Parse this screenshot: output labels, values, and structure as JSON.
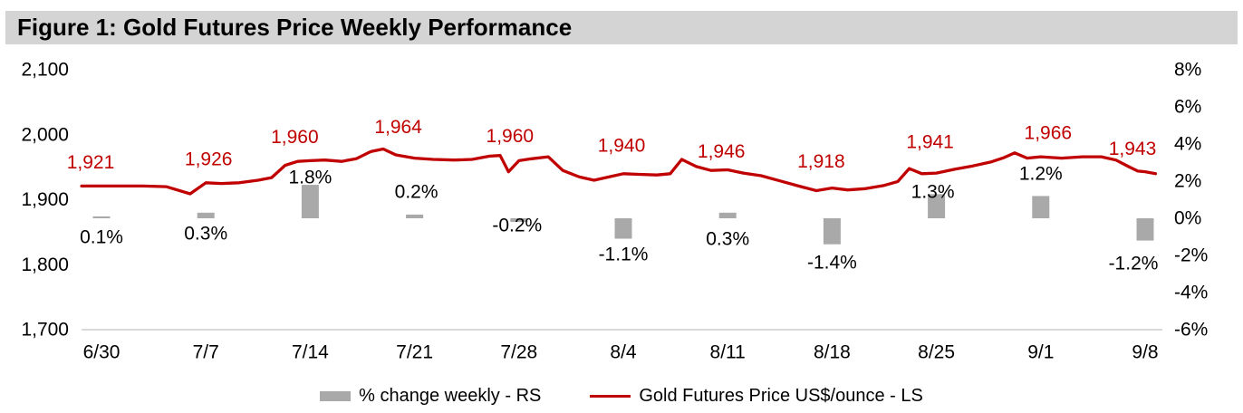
{
  "title": "Figure 1: Gold Futures Price Weekly Performance",
  "colors": {
    "line": "#c00000",
    "bar": "#a9a9a9",
    "title_bg": "#d4d4d4",
    "axis_line": "#d9d9d9",
    "text": "#000000"
  },
  "legend": [
    {
      "label": "% change weekly - RS",
      "swatch": "bar"
    },
    {
      "label": "Gold Futures Price US$/ounce - LS",
      "swatch": "line"
    }
  ],
  "chart_data": {
    "type": "combo",
    "title": "Figure 1: Gold Futures Price Weekly Performance",
    "categories": [
      "6/30",
      "7/7",
      "7/14",
      "7/21",
      "7/28",
      "8/4",
      "8/11",
      "8/18",
      "8/25",
      "9/1",
      "9/8"
    ],
    "left_axis": {
      "label": "Gold Futures Price US$/ounce - LS",
      "ticks": [
        "2,100",
        "2,000",
        "1,900",
        "1,800",
        "1,700"
      ],
      "range": [
        1700,
        2100
      ]
    },
    "right_axis": {
      "label": "% change weekly - RS",
      "ticks": [
        "8%",
        "6%",
        "4%",
        "2%",
        "0%",
        "-2%",
        "-4%",
        "-6%"
      ],
      "range": [
        -6,
        8
      ]
    },
    "grid": "baseline-only",
    "legend_position": "bottom-center",
    "series": [
      {
        "name": "% change weekly - RS",
        "type": "bar",
        "axis": "right",
        "values": [
          0.1,
          0.3,
          1.8,
          0.2,
          -0.2,
          -1.1,
          0.3,
          -1.4,
          1.3,
          1.2,
          -1.2
        ],
        "labels": [
          "0.1%",
          "0.3%",
          "1.8%",
          "0.2%",
          "-0.2%",
          "-1.1%",
          "0.3%",
          "-1.4%",
          "1.3%",
          "1.2%",
          "-1.2%"
        ]
      },
      {
        "name": "Gold Futures Price US$/ounce - LS",
        "type": "line",
        "axis": "left",
        "weekly_close": [
          1921,
          1926,
          1960,
          1964,
          1960,
          1940,
          1946,
          1918,
          1941,
          1966,
          1943
        ],
        "labels": [
          "1,921",
          "1,926",
          "1,960",
          "1,964",
          "1,960",
          "1,940",
          "1,946",
          "1,918",
          "1,941",
          "1,966",
          "1,943"
        ],
        "daily_points": [
          [
            -0.19,
            1921
          ],
          [
            0,
            1921
          ],
          [
            0.4,
            1921
          ],
          [
            0.62,
            1920
          ],
          [
            0.85,
            1909
          ],
          [
            1,
            1926
          ],
          [
            1.15,
            1925
          ],
          [
            1.32,
            1926
          ],
          [
            1.5,
            1930
          ],
          [
            1.63,
            1934
          ],
          [
            1.76,
            1953
          ],
          [
            1.88,
            1959
          ],
          [
            2,
            1960
          ],
          [
            2.14,
            1961
          ],
          [
            2.3,
            1959
          ],
          [
            2.44,
            1963
          ],
          [
            2.58,
            1974
          ],
          [
            2.7,
            1978
          ],
          [
            2.82,
            1969
          ],
          [
            3,
            1964
          ],
          [
            3.18,
            1962
          ],
          [
            3.38,
            1961
          ],
          [
            3.55,
            1962
          ],
          [
            3.72,
            1967
          ],
          [
            3.82,
            1968
          ],
          [
            3.9,
            1943
          ],
          [
            4,
            1960
          ],
          [
            4.12,
            1963
          ],
          [
            4.28,
            1966
          ],
          [
            4.42,
            1945
          ],
          [
            4.58,
            1935
          ],
          [
            4.72,
            1930
          ],
          [
            4.86,
            1935
          ],
          [
            5,
            1940
          ],
          [
            5.15,
            1939
          ],
          [
            5.32,
            1938
          ],
          [
            5.45,
            1940
          ],
          [
            5.56,
            1962
          ],
          [
            5.7,
            1951
          ],
          [
            5.84,
            1945
          ],
          [
            6,
            1946
          ],
          [
            6.15,
            1941
          ],
          [
            6.32,
            1937
          ],
          [
            6.5,
            1929
          ],
          [
            6.68,
            1921
          ],
          [
            6.85,
            1914
          ],
          [
            7,
            1918
          ],
          [
            7.15,
            1915
          ],
          [
            7.32,
            1917
          ],
          [
            7.5,
            1922
          ],
          [
            7.63,
            1928
          ],
          [
            7.74,
            1948
          ],
          [
            7.86,
            1940
          ],
          [
            8,
            1941
          ],
          [
            8.18,
            1947
          ],
          [
            8.35,
            1952
          ],
          [
            8.52,
            1958
          ],
          [
            8.65,
            1965
          ],
          [
            8.75,
            1972
          ],
          [
            8.87,
            1964
          ],
          [
            9,
            1966
          ],
          [
            9.2,
            1964
          ],
          [
            9.4,
            1966
          ],
          [
            9.58,
            1966
          ],
          [
            9.72,
            1961
          ],
          [
            9.84,
            1951
          ],
          [
            9.93,
            1944
          ],
          [
            10,
            1943
          ],
          [
            10.1,
            1940
          ]
        ]
      }
    ],
    "label_layout": {
      "bar_label_y": [
        262,
        258,
        196,
        212,
        249,
        281,
        264,
        290,
        212,
        192,
        291
      ],
      "bar_label_dx": [
        0,
        0,
        0,
        2,
        -2,
        0,
        0,
        0,
        -4,
        0,
        -13
      ],
      "price_label_dx": [
        -12,
        3,
        -17,
        -18,
        -10,
        -2,
        -7,
        -12,
        -7,
        8,
        -14
      ],
      "price_label_dy": [
        -26,
        -26,
        -26,
        -34,
        -27,
        -31,
        -20,
        -29,
        -34,
        -26,
        -25
      ]
    }
  }
}
